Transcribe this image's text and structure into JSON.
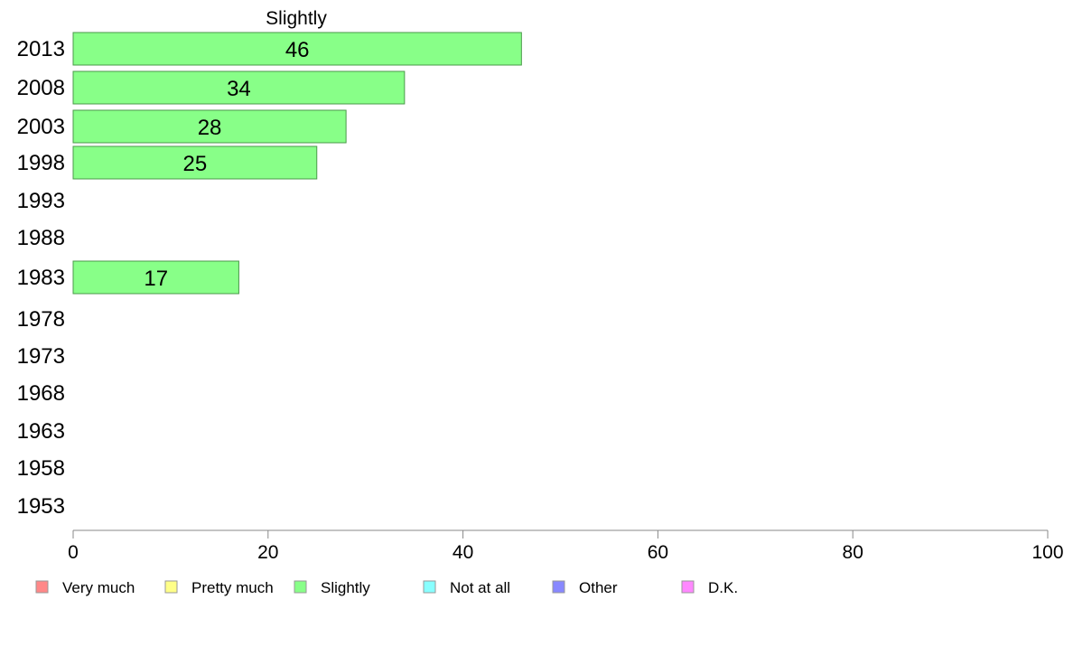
{
  "chart_data": {
    "type": "bar",
    "orientation": "horizontal",
    "title": "Slightly",
    "categories": [
      "2013",
      "2008",
      "2003",
      "1998",
      "1993",
      "1988",
      "1983",
      "1978",
      "1973",
      "1968",
      "1963",
      "1958",
      "1953"
    ],
    "series": [
      {
        "name": "Slightly",
        "color": "#88ff88",
        "values": [
          46,
          34,
          28,
          25,
          null,
          null,
          17,
          null,
          null,
          null,
          null,
          null,
          null
        ]
      }
    ],
    "xlim": [
      0,
      100
    ],
    "xticks": [
      "0",
      "20",
      "40",
      "60",
      "80",
      "100"
    ],
    "grid": false,
    "legend": {
      "placement": "bottom",
      "entries": [
        {
          "label": "Very much",
          "color": "#ff8888"
        },
        {
          "label": "Pretty much",
          "color": "#ffff88"
        },
        {
          "label": "Slightly",
          "color": "#88ff88"
        },
        {
          "label": "Not at all",
          "color": "#88ffff"
        },
        {
          "label": "Other",
          "color": "#8888ff"
        },
        {
          "label": "D.K.",
          "color": "#ff88ff"
        }
      ]
    }
  }
}
